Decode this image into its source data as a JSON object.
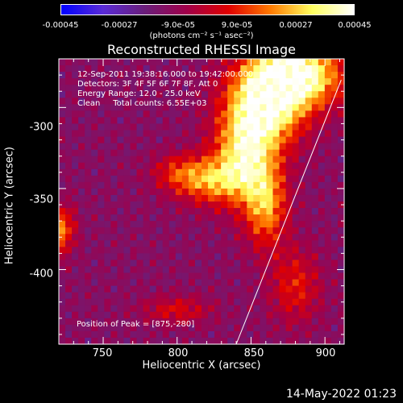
{
  "colorbar": {
    "ticks": [
      "-0.00045",
      "-0.00027",
      "-9.0e-05",
      "9.0e-05",
      "0.00027",
      "0.00045"
    ],
    "unit": "(photons cm⁻² s⁻¹ asec⁻²)",
    "colors": [
      "#0000ff",
      "#5a2bd6",
      "#6a1e7a",
      "#a0004a",
      "#e00000",
      "#ff7a00",
      "#ffff60",
      "#ffffff"
    ]
  },
  "title": "Reconstructed RHESSI Image",
  "info": {
    "time": "12-Sep-2011 19:38:16.000 to 19:42:00.000",
    "detectors": "Detectors: 3F 4F 5F 6F 7F 8F, Att 0",
    "energy": "Energy Range: 12.0 - 25.0 keV",
    "clean": "Clean     Total counts: 6.55E+03"
  },
  "peak": "Position of Peak = [875,-280]",
  "timestamp": "14-May-2022 01:23",
  "chart_data": {
    "type": "heatmap",
    "title": "Reconstructed RHESSI Image",
    "xlabel": "Heliocentric X (arcsec)",
    "ylabel": "Heliocentric Y (arcsec)",
    "xlim": [
      720,
      913
    ],
    "ylim": [
      -446,
      -270
    ],
    "x_ticks": [
      750,
      800,
      850,
      900
    ],
    "y_ticks": [
      -300,
      -350,
      -400
    ],
    "colorbar_range": [
      -0.00045,
      0.00045
    ],
    "peak": [
      875,
      -280
    ],
    "limb_line": {
      "x": [
        840,
        911
      ],
      "y": [
        -446,
        -283
      ]
    },
    "sources": [
      {
        "x": 880,
        "y": -280,
        "amp": 1.0,
        "sx": 22,
        "sy": 14
      },
      {
        "x": 860,
        "y": -300,
        "amp": 0.85,
        "sx": 18,
        "sy": 18
      },
      {
        "x": 845,
        "y": -330,
        "amp": 0.7,
        "sx": 14,
        "sy": 20
      },
      {
        "x": 822,
        "y": -345,
        "amp": 0.55,
        "sx": 16,
        "sy": 10
      },
      {
        "x": 860,
        "y": -360,
        "amp": 0.6,
        "sx": 10,
        "sy": 18
      },
      {
        "x": 722,
        "y": -375,
        "amp": 0.55,
        "sx": 6,
        "sy": 10
      },
      {
        "x": 800,
        "y": -340,
        "amp": 0.3,
        "sx": 12,
        "sy": 8
      },
      {
        "x": 880,
        "y": -410,
        "amp": 0.35,
        "sx": 12,
        "sy": 16
      },
      {
        "x": 800,
        "y": -425,
        "amp": 0.3,
        "sx": 16,
        "sy": 6
      }
    ]
  }
}
